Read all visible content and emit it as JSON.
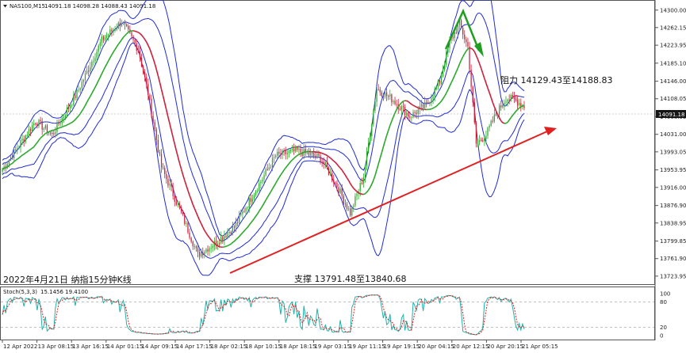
{
  "header": {
    "symbol": "NAS100,M15",
    "ohlc": "14091.18 14098.28 14088.43 14091.18"
  },
  "chart_data": {
    "type": "candlestick",
    "y_ticks": [
      "14300.00",
      "14262.15",
      "14223.95",
      "14185.10",
      "14146.00",
      "14108.05",
      "14068.95",
      "14031.00",
      "13993.05",
      "13953.95",
      "13916.00",
      "13876.90",
      "13838.95",
      "13799.85",
      "13761.90",
      "13723.95"
    ],
    "ylim": [
      13710,
      14315
    ],
    "current_price": "14091.18",
    "x_ticks": [
      "12 Apr 2022",
      "13 Apr 08:15",
      "13 Apr 16:15",
      "14 Apr 01:15",
      "14 Apr 09:15",
      "14 Apr 17:15",
      "18 Apr 02:15",
      "18 Apr 10:15",
      "18 Apr 18:15",
      "19 Apr 03:15",
      "19 Apr 11:15",
      "19 Apr 19:15",
      "20 Apr 04:15",
      "20 Apr 12:15",
      "20 Apr 20:15",
      "21 Apr 05:15"
    ],
    "price_anchors": [
      [
        0,
        13955
      ],
      [
        20,
        14060
      ],
      [
        30,
        14030
      ],
      [
        45,
        14120
      ],
      [
        60,
        14235
      ],
      [
        72,
        14275
      ],
      [
        82,
        14215
      ],
      [
        88,
        14120
      ],
      [
        96,
        13960
      ],
      [
        108,
        13860
      ],
      [
        118,
        13770
      ],
      [
        128,
        13795
      ],
      [
        140,
        13830
      ],
      [
        152,
        13905
      ],
      [
        165,
        13985
      ],
      [
        178,
        13995
      ],
      [
        192,
        13980
      ],
      [
        202,
        13920
      ],
      [
        210,
        13860
      ],
      [
        218,
        13940
      ],
      [
        226,
        14130
      ],
      [
        236,
        14105
      ],
      [
        246,
        14070
      ],
      [
        256,
        14095
      ],
      [
        264,
        14145
      ],
      [
        270,
        14230
      ],
      [
        276,
        14270
      ],
      [
        281,
        14220
      ],
      [
        286,
        14010
      ],
      [
        292,
        14030
      ],
      [
        298,
        14075
      ],
      [
        304,
        14110
      ],
      [
        310,
        14105
      ],
      [
        315,
        14091
      ]
    ],
    "annotations": {
      "title": "2022年4月21日 纳指15分钟K线",
      "resistance": "阻力 14129.43至14188.83",
      "support": "支撑 13791.48至13840.68"
    },
    "indicator": {
      "name": "Stoch(5,3,3)",
      "values": "15.1456 19.4100",
      "levels": [
        "80",
        "20"
      ],
      "axis": [
        "100",
        "80",
        "20",
        "0"
      ]
    },
    "colors": {
      "up": "#2aa82a",
      "down": "#cc1f3a",
      "bands": "#1f2bd8",
      "ma_up": "#2aa82a",
      "ma_down": "#cc1f3a",
      "trend": "#e02020",
      "arrow": "#1f9e1f",
      "stoch_main": "#20b2aa",
      "stoch_signal": "#e02020"
    }
  }
}
